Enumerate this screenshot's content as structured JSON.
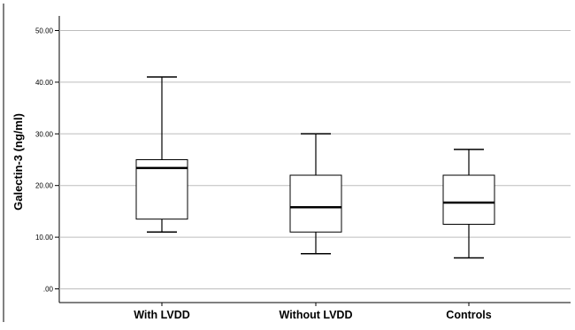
{
  "chart_data": {
    "type": "boxplot",
    "title": "",
    "xlabel": "",
    "ylabel": "Galectin-3 (ng/ml)",
    "ylim": [
      -2.5,
      54
    ],
    "grid": true,
    "yticks": [
      0,
      10,
      20,
      30,
      40,
      50
    ],
    "ytick_labels": [
      ".00",
      "10.00",
      "20.00",
      "30.00",
      "40.00",
      "50.00"
    ],
    "categories": [
      "With LVDD",
      "Without LVDD",
      "Controls"
    ],
    "boxes": [
      {
        "category": "With LVDD",
        "min": 11.0,
        "q1": 13.5,
        "median": 23.4,
        "q3": 25.0,
        "max": 41.0
      },
      {
        "category": "Without LVDD",
        "min": 6.8,
        "q1": 11.0,
        "median": 15.8,
        "q3": 22.0,
        "max": 30.0
      },
      {
        "category": "Controls",
        "min": 6.0,
        "q1": 12.5,
        "median": 16.7,
        "q3": 22.0,
        "max": 27.0
      }
    ]
  }
}
